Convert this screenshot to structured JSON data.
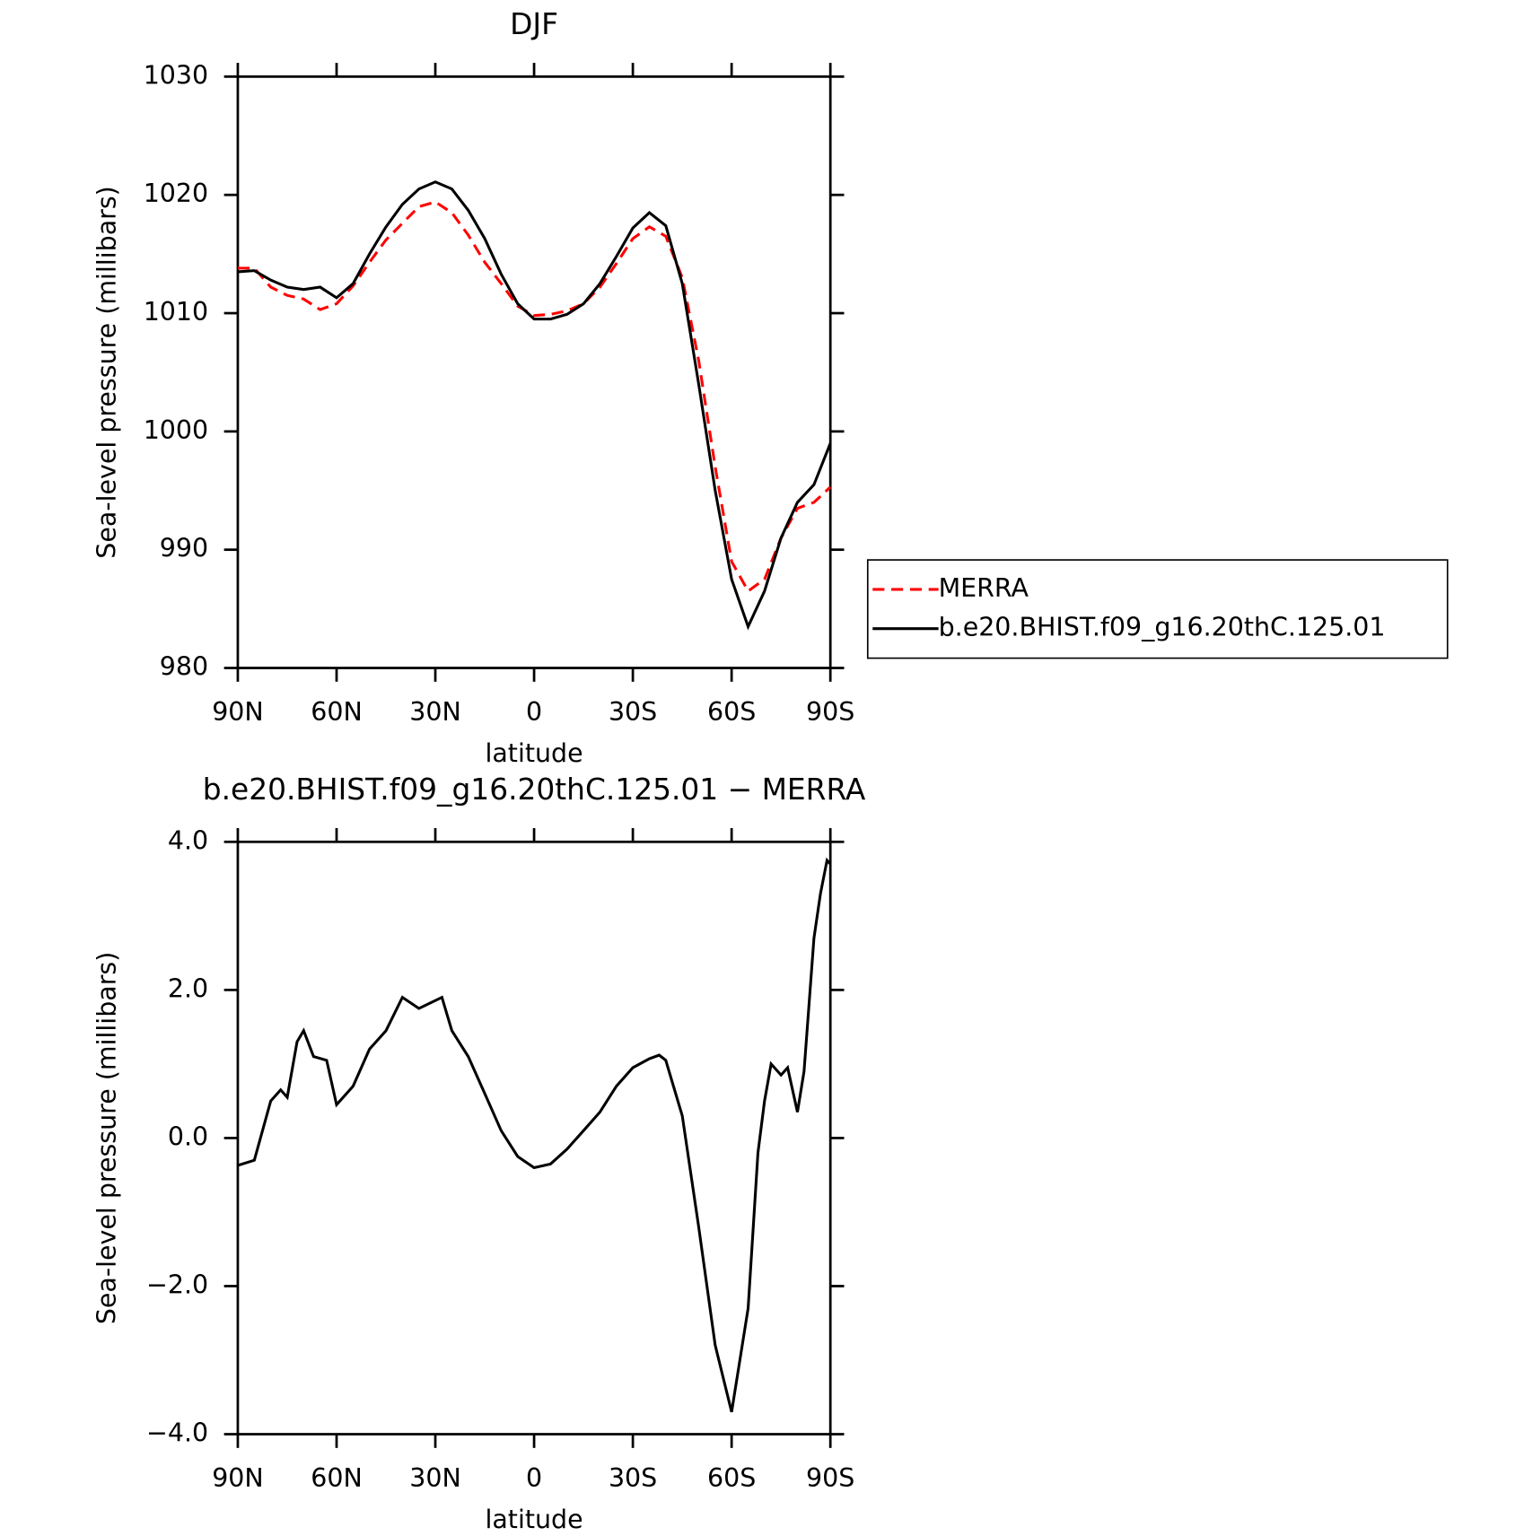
{
  "chart_data": [
    {
      "type": "line",
      "title": "DJF",
      "xlabel": "latitude",
      "ylabel": "Sea-level pressure (millibars)",
      "x": [
        90,
        85,
        80,
        75,
        70,
        65,
        60,
        55,
        50,
        45,
        40,
        35,
        30,
        25,
        20,
        15,
        10,
        5,
        0,
        -5,
        -10,
        -15,
        -20,
        -25,
        -30,
        -35,
        -40,
        -45,
        -50,
        -55,
        -60,
        -65,
        -70,
        -75,
        -80,
        -85,
        -90
      ],
      "series": [
        {
          "name": "MERRA",
          "color": "#ff0000",
          "dash": true,
          "values": [
            1013.8,
            1013.8,
            1012.2,
            1011.5,
            1011.2,
            1010.3,
            1010.8,
            1012.3,
            1014.3,
            1016.2,
            1017.6,
            1019,
            1019.4,
            1018.5,
            1016.6,
            1014.3,
            1012.5,
            1010.6,
            1009.8,
            1009.9,
            1010.2,
            1010.8,
            1012.2,
            1014.2,
            1016.3,
            1017.3,
            1016.5,
            1013,
            1006,
            997,
            989,
            986.5,
            987.5,
            991,
            993.5,
            994,
            995.3
          ]
        },
        {
          "name": "b.e20.BHIST.f09_g16.20thC.125.01",
          "color": "#000000",
          "dash": false,
          "values": [
            1013.5,
            1013.6,
            1012.8,
            1012.2,
            1012,
            1012.2,
            1011.3,
            1012.5,
            1015,
            1017.3,
            1019.2,
            1020.5,
            1021.1,
            1020.5,
            1018.7,
            1016.3,
            1013.3,
            1010.8,
            1009.5,
            1009.5,
            1009.9,
            1010.8,
            1012.5,
            1014.8,
            1017.2,
            1018.5,
            1017.4,
            1012.5,
            1004,
            995,
            987.5,
            983.5,
            986.5,
            991,
            994,
            995.5,
            999
          ]
        }
      ],
      "xlim": [
        90,
        -90
      ],
      "xticks": [
        {
          "value": 90,
          "label": "90N"
        },
        {
          "value": 60,
          "label": "60N"
        },
        {
          "value": 30,
          "label": "30N"
        },
        0,
        {
          "value": -30,
          "label": "30S"
        },
        {
          "value": -60,
          "label": "60S"
        },
        {
          "value": -90,
          "label": "90S"
        }
      ],
      "ylim": [
        980,
        1030
      ],
      "yticks": [
        980,
        990,
        1000,
        1010,
        1020,
        1030
      ],
      "legend": "right"
    },
    {
      "type": "line",
      "title": "b.e20.BHIST.f09_g16.20thC.125.01 − MERRA",
      "xlabel": "latitude",
      "ylabel": "Sea-level pressure (millibars)",
      "x": [
        90,
        85,
        80,
        77,
        75,
        72,
        70,
        67,
        63,
        60,
        55,
        50,
        45,
        40,
        35,
        28,
        25,
        20,
        15,
        10,
        5,
        0,
        -5,
        -10,
        -15,
        -20,
        -25,
        -30,
        -35,
        -38,
        -40,
        -45,
        -50,
        -55,
        -60,
        -65,
        -68,
        -70,
        -72,
        -75,
        -77,
        -80,
        -82,
        -85,
        -87,
        -89,
        -90
      ],
      "series": [
        {
          "color": "#000000",
          "dash": false,
          "values": [
            -0.37,
            -0.3,
            0.5,
            0.65,
            0.55,
            1.3,
            1.45,
            1.1,
            1.05,
            0.45,
            0.7,
            1.2,
            1.45,
            1.9,
            1.75,
            1.9,
            1.45,
            1.1,
            0.6,
            0.1,
            -0.25,
            -0.4,
            -0.35,
            -0.15,
            0.1,
            0.35,
            0.7,
            0.95,
            1.07,
            1.12,
            1.05,
            0.3,
            -1.2,
            -2.8,
            -3.7,
            -2.3,
            -0.2,
            0.5,
            1.0,
            0.85,
            0.95,
            0.35,
            0.9,
            2.7,
            3.3,
            3.75,
            3.7
          ]
        }
      ],
      "xlim": [
        90,
        -90
      ],
      "xticks": [
        {
          "value": 90,
          "label": "90N"
        },
        {
          "value": 60,
          "label": "60N"
        },
        {
          "value": 30,
          "label": "30N"
        },
        0,
        {
          "value": -30,
          "label": "30S"
        },
        {
          "value": -60,
          "label": "60S"
        },
        {
          "value": -90,
          "label": "90S"
        }
      ],
      "ylim": [
        -4,
        4
      ],
      "yticks": [
        {
          "value": -4,
          "label": "−4.0"
        },
        {
          "value": -2,
          "label": "−2.0"
        },
        {
          "value": 0,
          "label": "0.0"
        },
        {
          "value": 2,
          "label": "2.0"
        },
        {
          "value": 4,
          "label": "4.0"
        }
      ]
    }
  ]
}
